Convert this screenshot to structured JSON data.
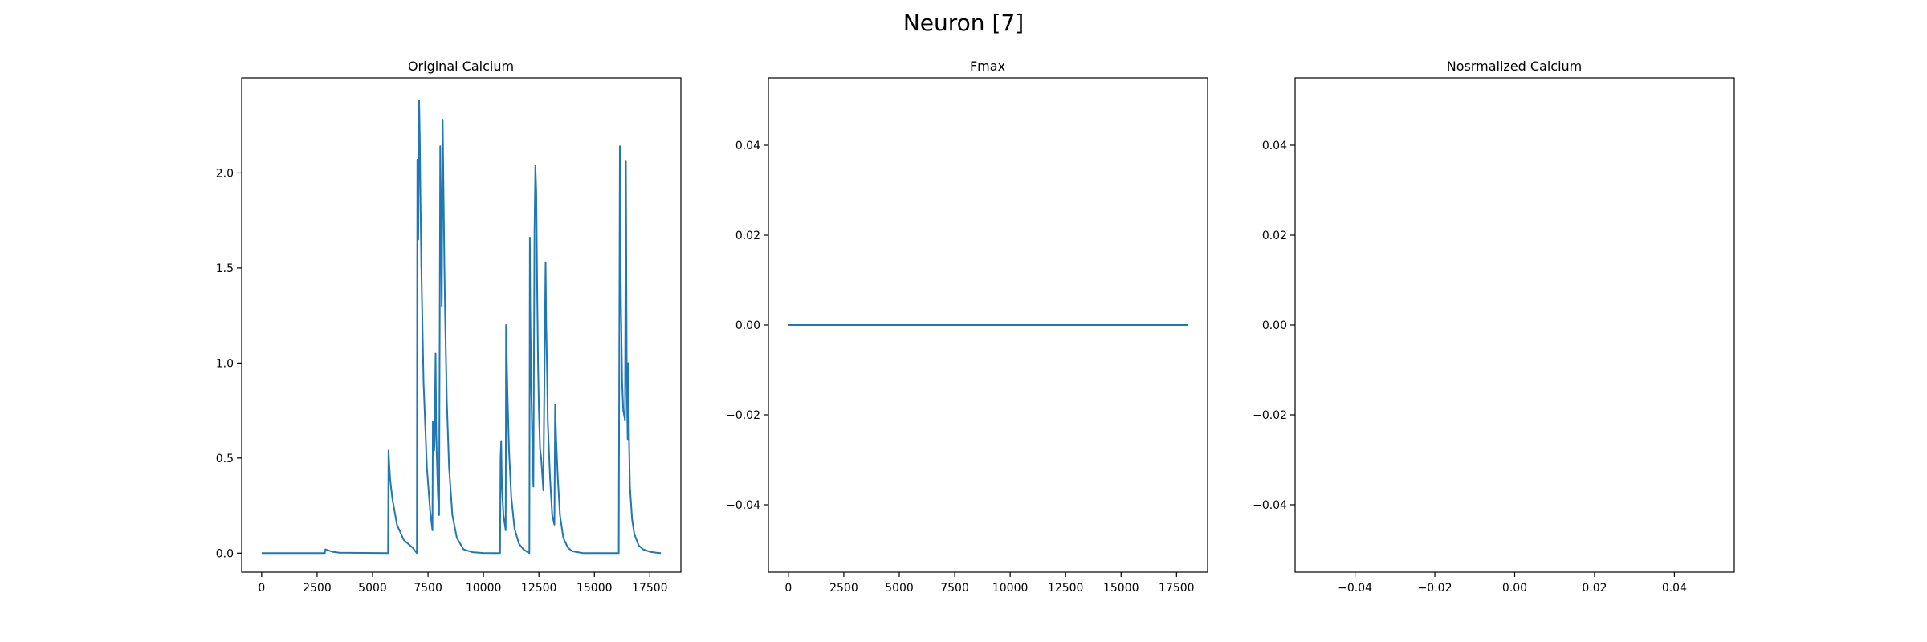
{
  "figure": {
    "title": "Neuron [7]"
  },
  "colors": {
    "line": "#1f77b4",
    "axes": "#000000",
    "background": "#ffffff"
  },
  "chart_data": [
    {
      "type": "line",
      "title": "Original Calcium",
      "xlabel": "",
      "ylabel": "",
      "xlim": [
        -900,
        18900
      ],
      "ylim": [
        -0.1,
        2.5
      ],
      "xticks": [
        0,
        2500,
        5000,
        7500,
        10000,
        12500,
        15000,
        17500
      ],
      "xtick_labels": [
        "0",
        "2500",
        "5000",
        "7500",
        "10000",
        "12500",
        "15000",
        "17500"
      ],
      "yticks": [
        0.0,
        0.5,
        1.0,
        1.5,
        2.0
      ],
      "ytick_labels": [
        "0.0",
        "0.5",
        "1.0",
        "1.5",
        "2.0"
      ],
      "grid": false,
      "series": [
        {
          "x": [
            0,
            2850,
            2870,
            3000,
            3200,
            3500,
            5700,
            5720,
            5760,
            5800,
            5900,
            6100,
            6400,
            6800,
            7000,
            7020,
            7060,
            7100,
            7130,
            7160,
            7200,
            7300,
            7450,
            7600,
            7700,
            7720,
            7780,
            7800,
            7840,
            7870,
            7900,
            7950,
            8000,
            8050,
            8100,
            8120,
            8160,
            8200,
            8240,
            8280,
            8350,
            8450,
            8600,
            8800,
            9100,
            9500,
            10000,
            10500,
            10750,
            10770,
            10800,
            10830,
            10900,
            11000,
            11020,
            11080,
            11150,
            11250,
            11400,
            11600,
            11800,
            12000,
            12070,
            12090,
            12110,
            12150,
            12200,
            12250,
            12300,
            12340,
            12380,
            12420,
            12460,
            12500,
            12550,
            12600,
            12700,
            12800,
            12830,
            12870,
            12900,
            12950,
            13000,
            13050,
            13100,
            13200,
            13230,
            13280,
            13350,
            13450,
            13600,
            13800,
            14000,
            14500,
            15000,
            15500,
            16100,
            16150,
            16170,
            16200,
            16250,
            16300,
            16380,
            16420,
            16460,
            16500,
            16530,
            16560,
            16600,
            16700,
            16800,
            17000,
            17200,
            17500,
            17800,
            18000
          ],
          "y": [
            0.0,
            0.0,
            0.02,
            0.015,
            0.007,
            0.002,
            0.0,
            0.54,
            0.45,
            0.38,
            0.28,
            0.15,
            0.07,
            0.03,
            0.0,
            2.07,
            1.65,
            2.38,
            2.2,
            1.85,
            1.5,
            0.9,
            0.45,
            0.22,
            0.12,
            0.69,
            0.54,
            0.6,
            1.05,
            0.65,
            0.5,
            0.3,
            0.2,
            2.14,
            1.6,
            1.3,
            2.28,
            1.9,
            1.5,
            1.2,
            0.8,
            0.45,
            0.2,
            0.08,
            0.02,
            0.005,
            0.001,
            0.0,
            0.0,
            0.5,
            0.59,
            0.35,
            0.2,
            0.12,
            1.2,
            0.85,
            0.55,
            0.3,
            0.13,
            0.05,
            0.02,
            0.005,
            0.0,
            1.66,
            1.3,
            0.9,
            0.6,
            0.35,
            1.69,
            2.04,
            1.9,
            1.4,
            1.0,
            0.75,
            0.55,
            0.5,
            0.33,
            1.53,
            1.2,
            0.95,
            0.7,
            0.55,
            0.4,
            0.3,
            0.2,
            0.15,
            0.78,
            0.6,
            0.4,
            0.2,
            0.08,
            0.03,
            0.01,
            0.0,
            0.0,
            0.0,
            0.0,
            2.14,
            1.7,
            1.3,
            0.9,
            0.75,
            0.7,
            2.06,
            0.9,
            0.6,
            1.0,
            0.6,
            0.35,
            0.18,
            0.1,
            0.04,
            0.02,
            0.007,
            0.002,
            0.0
          ]
        }
      ]
    },
    {
      "type": "line",
      "title": "Fmax",
      "xlabel": "",
      "ylabel": "",
      "xlim": [
        -900,
        18900
      ],
      "ylim": [
        -0.055,
        0.055
      ],
      "xticks": [
        0,
        2500,
        5000,
        7500,
        10000,
        12500,
        15000,
        17500
      ],
      "xtick_labels": [
        "0",
        "2500",
        "5000",
        "7500",
        "10000",
        "12500",
        "15000",
        "17500"
      ],
      "yticks": [
        -0.04,
        -0.02,
        0.0,
        0.02,
        0.04
      ],
      "ytick_labels": [
        "−0.04",
        "−0.02",
        "0.00",
        "0.02",
        "0.04"
      ],
      "grid": false,
      "series": [
        {
          "x": [
            0,
            18000
          ],
          "y": [
            0.0,
            0.0
          ]
        }
      ]
    },
    {
      "type": "line",
      "title": "Nosrmalized Calcium",
      "xlabel": "",
      "ylabel": "",
      "xlim": [
        -0.055,
        0.055
      ],
      "ylim": [
        -0.055,
        0.055
      ],
      "xticks": [
        -0.04,
        -0.02,
        0.0,
        0.02,
        0.04
      ],
      "xtick_labels": [
        "−0.04",
        "−0.02",
        "0.00",
        "0.02",
        "0.04"
      ],
      "yticks": [
        -0.04,
        -0.02,
        0.0,
        0.02,
        0.04
      ],
      "ytick_labels": [
        "−0.04",
        "−0.02",
        "0.00",
        "0.02",
        "0.04"
      ],
      "grid": false,
      "series": []
    }
  ]
}
